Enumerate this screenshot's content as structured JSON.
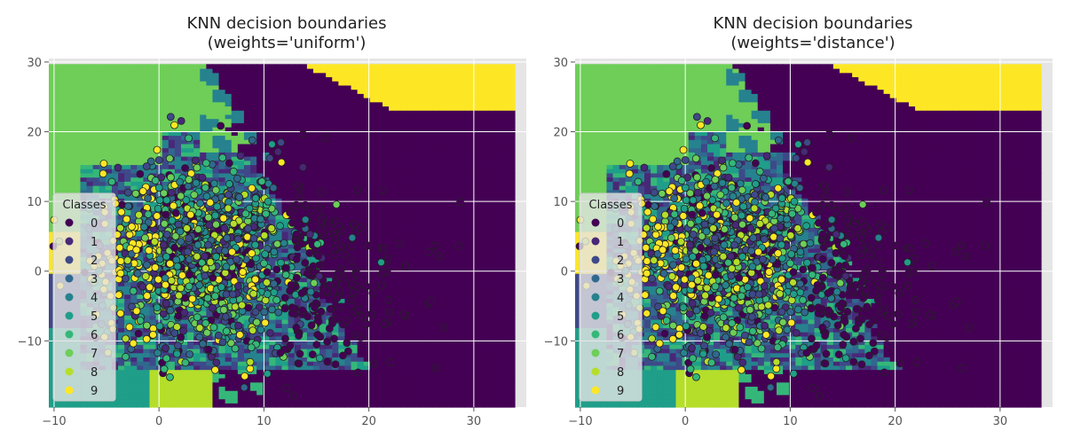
{
  "chart_data": [
    {
      "type": "scatter",
      "title_line1": "KNN decision boundaries",
      "title_line2": "(weights='uniform')",
      "xlabel": "",
      "ylabel": "",
      "xlim": [
        -10,
        35
      ],
      "ylim": [
        -20,
        30
      ],
      "xticks": [
        -10,
        0,
        10,
        20,
        30
      ],
      "yticks": [
        -10,
        0,
        10,
        20,
        30
      ],
      "grid": true,
      "legend_position": "middle-left",
      "legend_title": "Classes",
      "legend_items": [
        "0",
        "1",
        "2",
        "3",
        "4",
        "5",
        "6",
        "7",
        "8",
        "9"
      ]
    },
    {
      "type": "scatter",
      "title_line1": "KNN decision boundaries",
      "title_line2": "(weights='distance')",
      "xlabel": "",
      "ylabel": "",
      "xlim": [
        -10,
        35
      ],
      "ylim": [
        -20,
        30
      ],
      "xticks": [
        -10,
        0,
        10,
        20,
        30
      ],
      "yticks": [
        -10,
        0,
        10,
        20,
        30
      ],
      "grid": true,
      "legend_position": "middle-left",
      "legend_title": "Classes",
      "legend_items": [
        "0",
        "1",
        "2",
        "3",
        "4",
        "5",
        "6",
        "7",
        "8",
        "9"
      ]
    }
  ],
  "palette": [
    "#440154",
    "#482878",
    "#3e4989",
    "#31688e",
    "#26828e",
    "#1f9e89",
    "#35b779",
    "#6ece58",
    "#b5de2b",
    "#fde725"
  ],
  "axes_background": "#e5e5e5"
}
